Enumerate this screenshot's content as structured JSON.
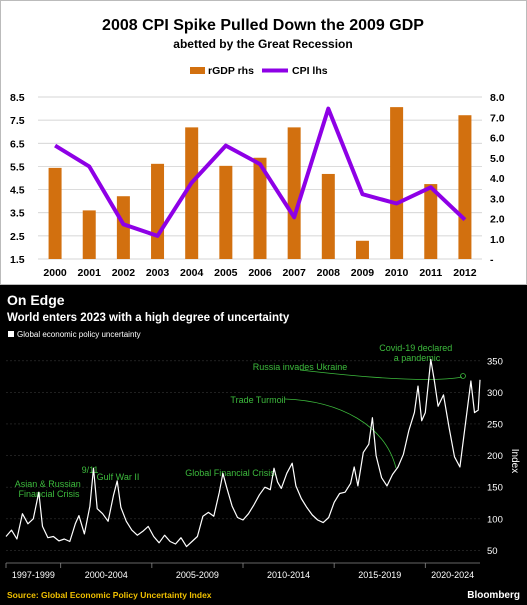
{
  "chart_data": [
    {
      "type": "bar-line",
      "title": "2008 CPI Spike Pulled Down the 2009 GDP",
      "subtitle": "abetted by the Great Recession",
      "legend": [
        {
          "label": "rGDP rhs",
          "color": "#d2700f"
        },
        {
          "label": "CPI lhs",
          "color": "#8e00e6"
        }
      ],
      "legend_position": "top-center",
      "categories": [
        "2000",
        "2001",
        "2002",
        "2003",
        "2004",
        "2005",
        "2006",
        "2007",
        "2008",
        "2009",
        "2010",
        "2011",
        "2012"
      ],
      "series": [
        {
          "name": "rGDP rhs",
          "kind": "bar",
          "axis": "right",
          "color": "#d2700f",
          "values": [
            4.5,
            2.4,
            3.1,
            4.7,
            6.5,
            4.6,
            5.0,
            6.5,
            4.2,
            0.9,
            7.5,
            3.7,
            7.1
          ]
        },
        {
          "name": "CPI lhs",
          "kind": "line",
          "axis": "left",
          "color": "#8e00e6",
          "values": [
            6.4,
            5.5,
            3.0,
            2.5,
            4.8,
            6.4,
            5.6,
            3.3,
            8.0,
            4.3,
            3.9,
            4.6,
            3.2
          ]
        }
      ],
      "y_left": {
        "ticks": [
          "8.5",
          "7.5",
          "6.5",
          "5.5",
          "4.5",
          "3.5",
          "2.5",
          "1.5"
        ],
        "range": [
          1.5,
          8.5
        ]
      },
      "y_right": {
        "ticks": [
          "8.0",
          "7.0",
          "6.0",
          "5.0",
          "4.0",
          "3.0",
          "2.0",
          "1.0",
          "-"
        ],
        "range": [
          0,
          8
        ]
      },
      "grid": true
    },
    {
      "type": "line",
      "title": "On Edge",
      "subtitle": "World enters 2023 with a high degree of uncertainty",
      "legend": [
        {
          "label": "Global economic policy uncertainty",
          "color": "#ffffff"
        }
      ],
      "legend_position": "top-left",
      "ylabel": "Index",
      "y_ticks": [
        "350",
        "300",
        "250",
        "200",
        "150",
        "100",
        "50"
      ],
      "ylim": [
        30,
        375
      ],
      "x_ticks": [
        "1997-1999",
        "2000-2004",
        "2005-2009",
        "2010-2014",
        "2015-2019",
        "2020-2024"
      ],
      "x_range": [
        1997,
        2023
      ],
      "series": [
        {
          "name": "Global economic policy uncertainty",
          "color": "#ffffff",
          "points": [
            [
              1997.0,
              72
            ],
            [
              1997.3,
              82
            ],
            [
              1997.6,
              68
            ],
            [
              1997.9,
              108
            ],
            [
              1998.2,
              92
            ],
            [
              1998.5,
              100
            ],
            [
              1998.8,
              142
            ],
            [
              1999.0,
              88
            ],
            [
              1999.3,
              70
            ],
            [
              1999.6,
              72
            ],
            [
              1999.9,
              65
            ],
            [
              2000.2,
              68
            ],
            [
              2000.5,
              64
            ],
            [
              2000.8,
              92
            ],
            [
              2001.0,
              105
            ],
            [
              2001.3,
              76
            ],
            [
              2001.6,
              120
            ],
            [
              2001.8,
              180
            ],
            [
              2002.0,
              116
            ],
            [
              2002.3,
              108
            ],
            [
              2002.6,
              96
            ],
            [
              2002.9,
              138
            ],
            [
              2003.1,
              160
            ],
            [
              2003.3,
              118
            ],
            [
              2003.6,
              96
            ],
            [
              2003.9,
              82
            ],
            [
              2004.2,
              74
            ],
            [
              2004.5,
              80
            ],
            [
              2004.8,
              88
            ],
            [
              2005.1,
              72
            ],
            [
              2005.4,
              62
            ],
            [
              2005.7,
              74
            ],
            [
              2006.0,
              64
            ],
            [
              2006.3,
              60
            ],
            [
              2006.6,
              70
            ],
            [
              2006.9,
              56
            ],
            [
              2007.2,
              64
            ],
            [
              2007.5,
              72
            ],
            [
              2007.8,
              104
            ],
            [
              2008.1,
              110
            ],
            [
              2008.4,
              104
            ],
            [
              2008.7,
              142
            ],
            [
              2008.9,
              172
            ],
            [
              2009.1,
              150
            ],
            [
              2009.4,
              120
            ],
            [
              2009.7,
              102
            ],
            [
              2010.0,
              98
            ],
            [
              2010.3,
              108
            ],
            [
              2010.6,
              122
            ],
            [
              2010.9,
              138
            ],
            [
              2011.2,
              150
            ],
            [
              2011.5,
              146
            ],
            [
              2011.7,
              180
            ],
            [
              2011.9,
              158
            ],
            [
              2012.1,
              148
            ],
            [
              2012.4,
              172
            ],
            [
              2012.7,
              188
            ],
            [
              2012.9,
              152
            ],
            [
              2013.2,
              132
            ],
            [
              2013.5,
              118
            ],
            [
              2013.8,
              106
            ],
            [
              2014.1,
              98
            ],
            [
              2014.4,
              94
            ],
            [
              2014.7,
              102
            ],
            [
              2015.0,
              126
            ],
            [
              2015.3,
              140
            ],
            [
              2015.6,
              142
            ],
            [
              2015.9,
              156
            ],
            [
              2016.1,
              182
            ],
            [
              2016.3,
              152
            ],
            [
              2016.6,
              205
            ],
            [
              2016.9,
              218
            ],
            [
              2017.1,
              260
            ],
            [
              2017.3,
              200
            ],
            [
              2017.6,
              165
            ],
            [
              2017.9,
              152
            ],
            [
              2018.2,
              170
            ],
            [
              2018.5,
              182
            ],
            [
              2018.8,
              202
            ],
            [
              2019.1,
              240
            ],
            [
              2019.4,
              268
            ],
            [
              2019.6,
              310
            ],
            [
              2019.8,
              255
            ],
            [
              2020.0,
              268
            ],
            [
              2020.3,
              352
            ],
            [
              2020.5,
              318
            ],
            [
              2020.7,
              278
            ],
            [
              2021.0,
              296
            ],
            [
              2021.3,
              245
            ],
            [
              2021.6,
              198
            ],
            [
              2021.9,
              182
            ],
            [
              2022.2,
              250
            ],
            [
              2022.5,
              318
            ],
            [
              2022.7,
              268
            ],
            [
              2022.9,
              272
            ],
            [
              2023.0,
              320
            ]
          ]
        }
      ],
      "annotations": [
        "Asian & Russian Financial Crisis",
        "9/11",
        "Gulf War II",
        "Global Financial Crisis",
        "Trade Turmoil",
        "Russia invades Ukraine",
        "Covid-19 declared a pandemic"
      ],
      "source": "Source: Global Economic Policy Uncertainty Index",
      "brand": "Bloomberg"
    }
  ]
}
